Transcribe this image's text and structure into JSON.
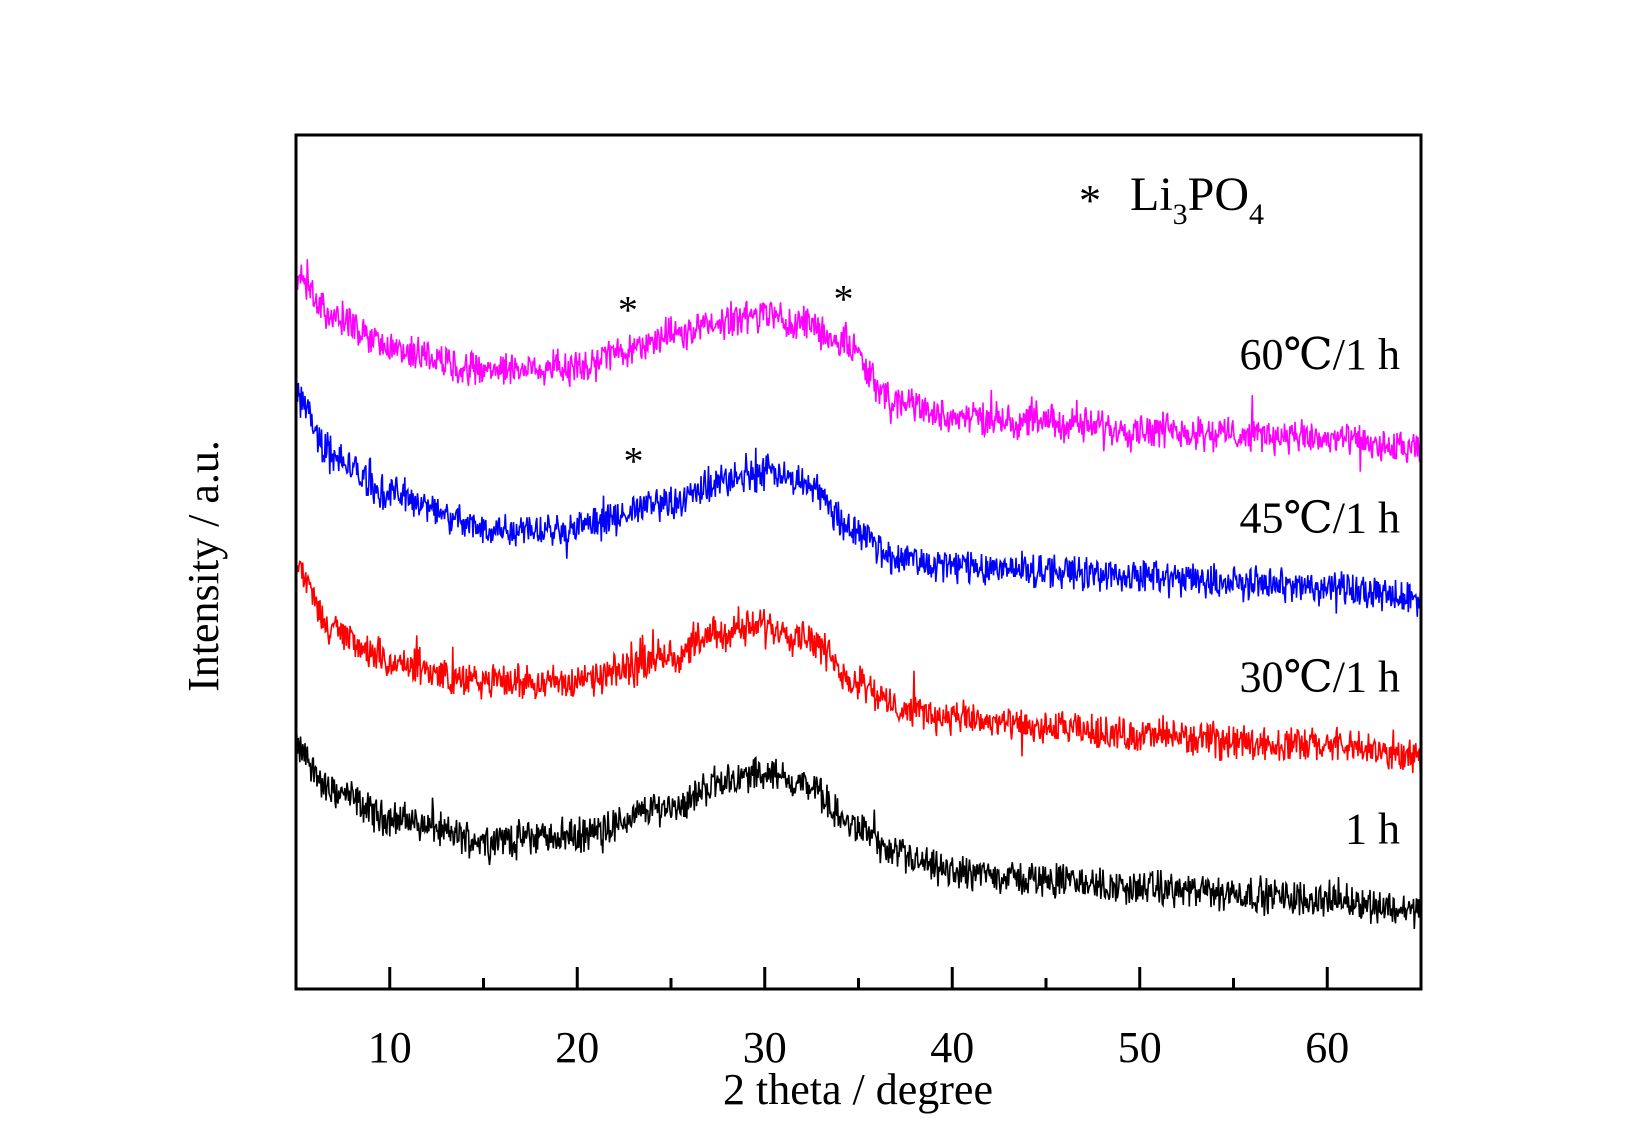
{
  "chart_data": {
    "type": "line",
    "title": "",
    "xlabel": "2 theta / degree",
    "ylabel": "Intensity / a.u.",
    "xlim": [
      5,
      65
    ],
    "ylim": [
      0,
      100
    ],
    "xticks": [
      10,
      20,
      30,
      40,
      50,
      60
    ],
    "xticks_minor": [
      15,
      25,
      35,
      45,
      55
    ],
    "grid": false,
    "legend": {
      "marker": "*",
      "text": "Li",
      "sub1": "3",
      "text2": "PO",
      "sub2": "4",
      "placement": "top-right"
    },
    "series": [
      {
        "name": "1 h",
        "color": "#000000",
        "anchors_x": [
          5,
          7,
          10,
          15,
          20,
          25,
          28,
          30,
          32,
          35,
          37,
          40,
          45,
          50,
          55,
          60,
          65
        ],
        "anchors_y": [
          28,
          23,
          20,
          17.5,
          18,
          21.4,
          24.5,
          25.3,
          24,
          18.8,
          15.5,
          13.7,
          12.8,
          11.8,
          11.2,
          10.5,
          9.2
        ]
      },
      {
        "name": "30℃/1 h",
        "color": "#ff0000",
        "anchors_x": [
          5,
          7,
          10,
          15,
          20,
          25,
          28,
          30,
          32,
          35,
          37,
          40,
          45,
          50,
          55,
          60,
          65
        ],
        "anchors_y": [
          49,
          42,
          38,
          36,
          36,
          39,
          41.8,
          42.6,
          41.5,
          36,
          33,
          31.7,
          30.5,
          29.7,
          29,
          28.5,
          27.2
        ]
      },
      {
        "name": "45℃/1 h",
        "color": "#0000ff",
        "anchors_x": [
          5,
          7,
          10,
          15,
          20,
          25,
          28,
          30,
          32,
          35,
          37,
          40,
          45,
          50,
          55,
          60,
          65
        ],
        "anchors_y": [
          69.5,
          62,
          58,
          54,
          54,
          57,
          59.5,
          60.5,
          59.5,
          53.5,
          50.5,
          49.6,
          49,
          48.3,
          47.6,
          47,
          45.8
        ]
      },
      {
        "name": "60℃/1 h",
        "color": "#ff00ff",
        "anchors_x": [
          5,
          7,
          10,
          15,
          20,
          22,
          25,
          28,
          30,
          32,
          34,
          37,
          40,
          45,
          50,
          55,
          60,
          65
        ],
        "anchors_y": [
          83.6,
          78.5,
          75,
          72.7,
          72.7,
          74.5,
          76.5,
          78.2,
          79,
          78,
          76,
          68.8,
          67,
          66.3,
          65.6,
          65,
          64.4,
          63
        ]
      }
    ],
    "annotations": [
      {
        "text": "*",
        "x": 22.7,
        "y": 80.5
      },
      {
        "text": "*",
        "x": 34.2,
        "y": 81.8
      },
      {
        "text": "*",
        "x": 23.0,
        "y": 62.8
      }
    ],
    "series_labels": [
      {
        "text": "60℃/1 h",
        "y": 74.5
      },
      {
        "text": "45℃/1 h",
        "y": 55.3
      },
      {
        "text": "30℃/1 h",
        "y": 36.7
      },
      {
        "text": "1 h",
        "y": 18.9
      }
    ]
  }
}
